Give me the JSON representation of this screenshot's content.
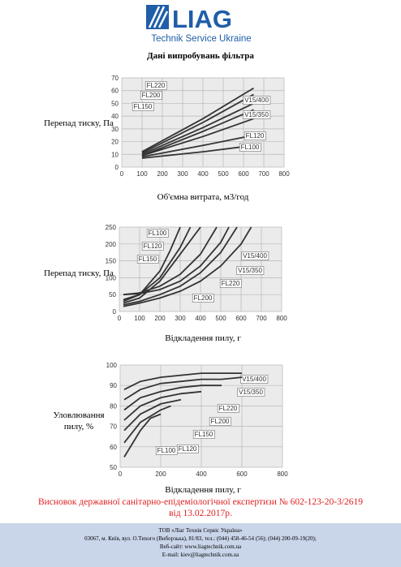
{
  "header": {
    "logo": "LIAG",
    "subtitle": "Technik Service Ukraine"
  },
  "title": "Дані випробувань фільтра",
  "chart_data": [
    {
      "type": "line",
      "y_label": "Перепад тиску, Па",
      "x_label": "Об'ємна витрата, м3/год",
      "xlim": [
        0,
        800
      ],
      "ylim": [
        0,
        70
      ],
      "xticks": [
        0,
        100,
        200,
        300,
        400,
        500,
        600,
        700,
        800
      ],
      "yticks": [
        0,
        10,
        20,
        30,
        40,
        50,
        60,
        70
      ],
      "grid": true,
      "series": [
        {
          "name": "FL220",
          "color": "#333333",
          "x": [
            100,
            400,
            650
          ],
          "values": [
            12,
            38,
            62
          ]
        },
        {
          "name": "FL200",
          "color": "#333333",
          "x": [
            100,
            400,
            650
          ],
          "values": [
            11,
            35,
            57
          ]
        },
        {
          "name": "FL150",
          "color": "#333333",
          "x": [
            100,
            400,
            650
          ],
          "values": [
            10,
            31,
            50
          ]
        },
        {
          "name": "V15/400",
          "color": "#333333",
          "x": [
            100,
            400,
            650
          ],
          "values": [
            9,
            28,
            45
          ]
        },
        {
          "name": "V15/350",
          "color": "#333333",
          "x": [
            100,
            400,
            650
          ],
          "values": [
            9,
            24,
            38
          ]
        },
        {
          "name": "FL120",
          "color": "#333333",
          "x": [
            100,
            400,
            650
          ],
          "values": [
            8,
            17,
            25
          ]
        },
        {
          "name": "FL100",
          "color": "#333333",
          "x": [
            100,
            400,
            650
          ],
          "values": [
            7,
            12,
            17
          ]
        }
      ]
    },
    {
      "type": "line",
      "y_label": "Перепад тиску, Па",
      "x_label": "Відкладення пилу, г",
      "xlim": [
        0,
        800
      ],
      "ylim": [
        0,
        250
      ],
      "xticks": [
        0,
        100,
        200,
        300,
        400,
        500,
        600,
        700,
        800
      ],
      "yticks": [
        0,
        50,
        100,
        150,
        200,
        250
      ],
      "grid": true,
      "series": [
        {
          "name": "FL100",
          "color": "#333333",
          "x": [
            20,
            100,
            200,
            250,
            300
          ],
          "values": [
            30,
            50,
            120,
            180,
            250
          ]
        },
        {
          "name": "FL120",
          "color": "#333333",
          "x": [
            20,
            100,
            200,
            300,
            350
          ],
          "values": [
            35,
            50,
            100,
            190,
            250
          ]
        },
        {
          "name": "FL150",
          "color": "#333333",
          "x": [
            20,
            100,
            200,
            300,
            400
          ],
          "values": [
            25,
            40,
            90,
            170,
            250
          ]
        },
        {
          "name": "V15/400",
          "color": "#333333",
          "x": [
            20,
            100,
            200,
            300,
            400,
            480
          ],
          "values": [
            50,
            55,
            75,
            110,
            170,
            250
          ]
        },
        {
          "name": "V15/350",
          "color": "#333333",
          "x": [
            20,
            100,
            200,
            300,
            400,
            500,
            540
          ],
          "values": [
            50,
            53,
            65,
            90,
            135,
            205,
            250
          ]
        },
        {
          "name": "FL220",
          "color": "#333333",
          "x": [
            20,
            100,
            200,
            300,
            400,
            500,
            600,
            650
          ],
          "values": [
            15,
            25,
            40,
            60,
            90,
            135,
            200,
            250
          ]
        },
        {
          "name": "FL200",
          "color": "#333333",
          "x": [
            20,
            100,
            200,
            300,
            400,
            500,
            580
          ],
          "values": [
            20,
            30,
            50,
            75,
            115,
            175,
            250
          ]
        }
      ]
    },
    {
      "type": "line",
      "y_label": "Уловлювання пилу, %",
      "x_label": "Відкладення пилу, г",
      "xlim": [
        0,
        800
      ],
      "ylim": [
        50,
        100
      ],
      "xticks": [
        0,
        200,
        400,
        600,
        800
      ],
      "yticks": [
        50,
        60,
        70,
        80,
        90,
        100
      ],
      "grid": true,
      "series": [
        {
          "name": "V15/400",
          "color": "#333333",
          "x": [
            20,
            100,
            200,
            300,
            400,
            500,
            600
          ],
          "values": [
            88,
            92,
            94,
            95,
            96,
            96,
            96
          ]
        },
        {
          "name": "V15/350",
          "color": "#333333",
          "x": [
            20,
            100,
            200,
            300,
            400,
            500,
            600
          ],
          "values": [
            83,
            88,
            91,
            92,
            93,
            93,
            94
          ]
        },
        {
          "name": "FL220",
          "color": "#333333",
          "x": [
            20,
            100,
            200,
            300,
            400,
            500
          ],
          "values": [
            78,
            84,
            87,
            89,
            90,
            90
          ]
        },
        {
          "name": "FL200",
          "color": "#333333",
          "x": [
            20,
            100,
            200,
            300,
            400
          ],
          "values": [
            73,
            80,
            84,
            86,
            87
          ]
        },
        {
          "name": "FL150",
          "color": "#333333",
          "x": [
            20,
            100,
            200,
            300
          ],
          "values": [
            68,
            76,
            81,
            83
          ]
        },
        {
          "name": "FL120",
          "color": "#333333",
          "x": [
            20,
            100,
            200,
            250
          ],
          "values": [
            62,
            72,
            78,
            80
          ]
        },
        {
          "name": "FL100",
          "color": "#333333",
          "x": [
            20,
            100,
            150,
            200
          ],
          "values": [
            55,
            68,
            74,
            76
          ]
        }
      ]
    }
  ],
  "conclusion": [
    "Висновок державної санітарно-епідеміологічної експертизи № 602-123-20-3/2619",
    "від 13.02.2017р."
  ],
  "footer": [
    "ТОВ «Ліаг Технік Сервіс Україна»",
    "03067, м. Київ, вул. О.Тихого (Виборзька), 81/83, тел.: (044) 458-46-54 (56); (044) 200-09-19(20);",
    "Веб-сайт: www.liagtechnik.com.ua",
    "E-mail: kiev@liagtechnik.com.ua"
  ]
}
